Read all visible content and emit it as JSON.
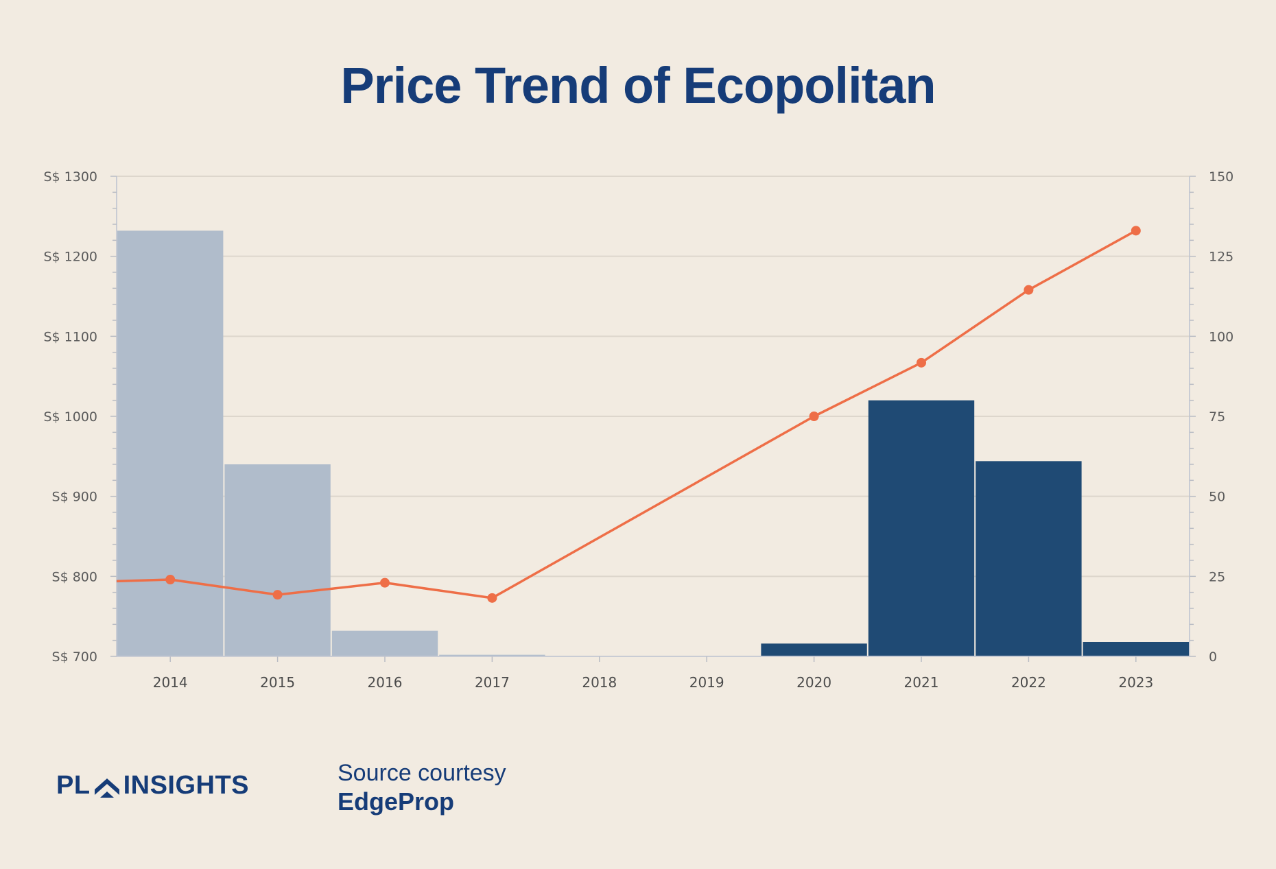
{
  "title": "Price Trend of Ecopolitan",
  "brand": {
    "logo_left": "PL",
    "logo_right": "INSIGHTS",
    "source_line1": "Source courtesy",
    "source_line2": "EdgeProp"
  },
  "colors": {
    "background": "#f2ebe1",
    "title": "#163c78",
    "bar_light": "#b0bccb",
    "bar_dark": "#1f4a74",
    "line": "#ee6e47",
    "grid": "#ddd6cc"
  },
  "chart_data": {
    "type": "bar",
    "categories": [
      "2014",
      "2015",
      "2016",
      "2017",
      "2018",
      "2019",
      "2020",
      "2021",
      "2022",
      "2023"
    ],
    "series": [
      {
        "type": "bar",
        "axis": "right",
        "values": [
          133,
          60,
          8,
          0.5,
          0,
          0,
          4,
          80,
          61,
          4.5
        ],
        "colors": [
          "light",
          "light",
          "light",
          "light",
          "light",
          "light",
          "dark",
          "dark",
          "dark",
          "dark"
        ]
      },
      {
        "type": "line",
        "axis": "left",
        "values": [
          796,
          777,
          792,
          773,
          null,
          null,
          1000,
          1067,
          1158,
          1232
        ],
        "line_start_value": 794,
        "color": "#ee6e47"
      }
    ],
    "y_left": {
      "ylim": [
        700,
        1300
      ],
      "ticks": [
        700,
        800,
        900,
        1000,
        1100,
        1200,
        1300
      ],
      "tick_labels": [
        "S$ 700",
        "S$ 800",
        "S$ 900",
        "S$ 1000",
        "S$ 1100",
        "S$ 1200",
        "S$ 1300"
      ]
    },
    "y_right": {
      "ylim": [
        0,
        150
      ],
      "ticks": [
        0,
        25,
        50,
        75,
        100,
        125,
        150
      ],
      "tick_labels": [
        "0",
        "25",
        "50",
        "75",
        "100",
        "125",
        "150"
      ]
    },
    "xlabel": "",
    "ylabel": "",
    "grid": true,
    "legend": "none"
  }
}
